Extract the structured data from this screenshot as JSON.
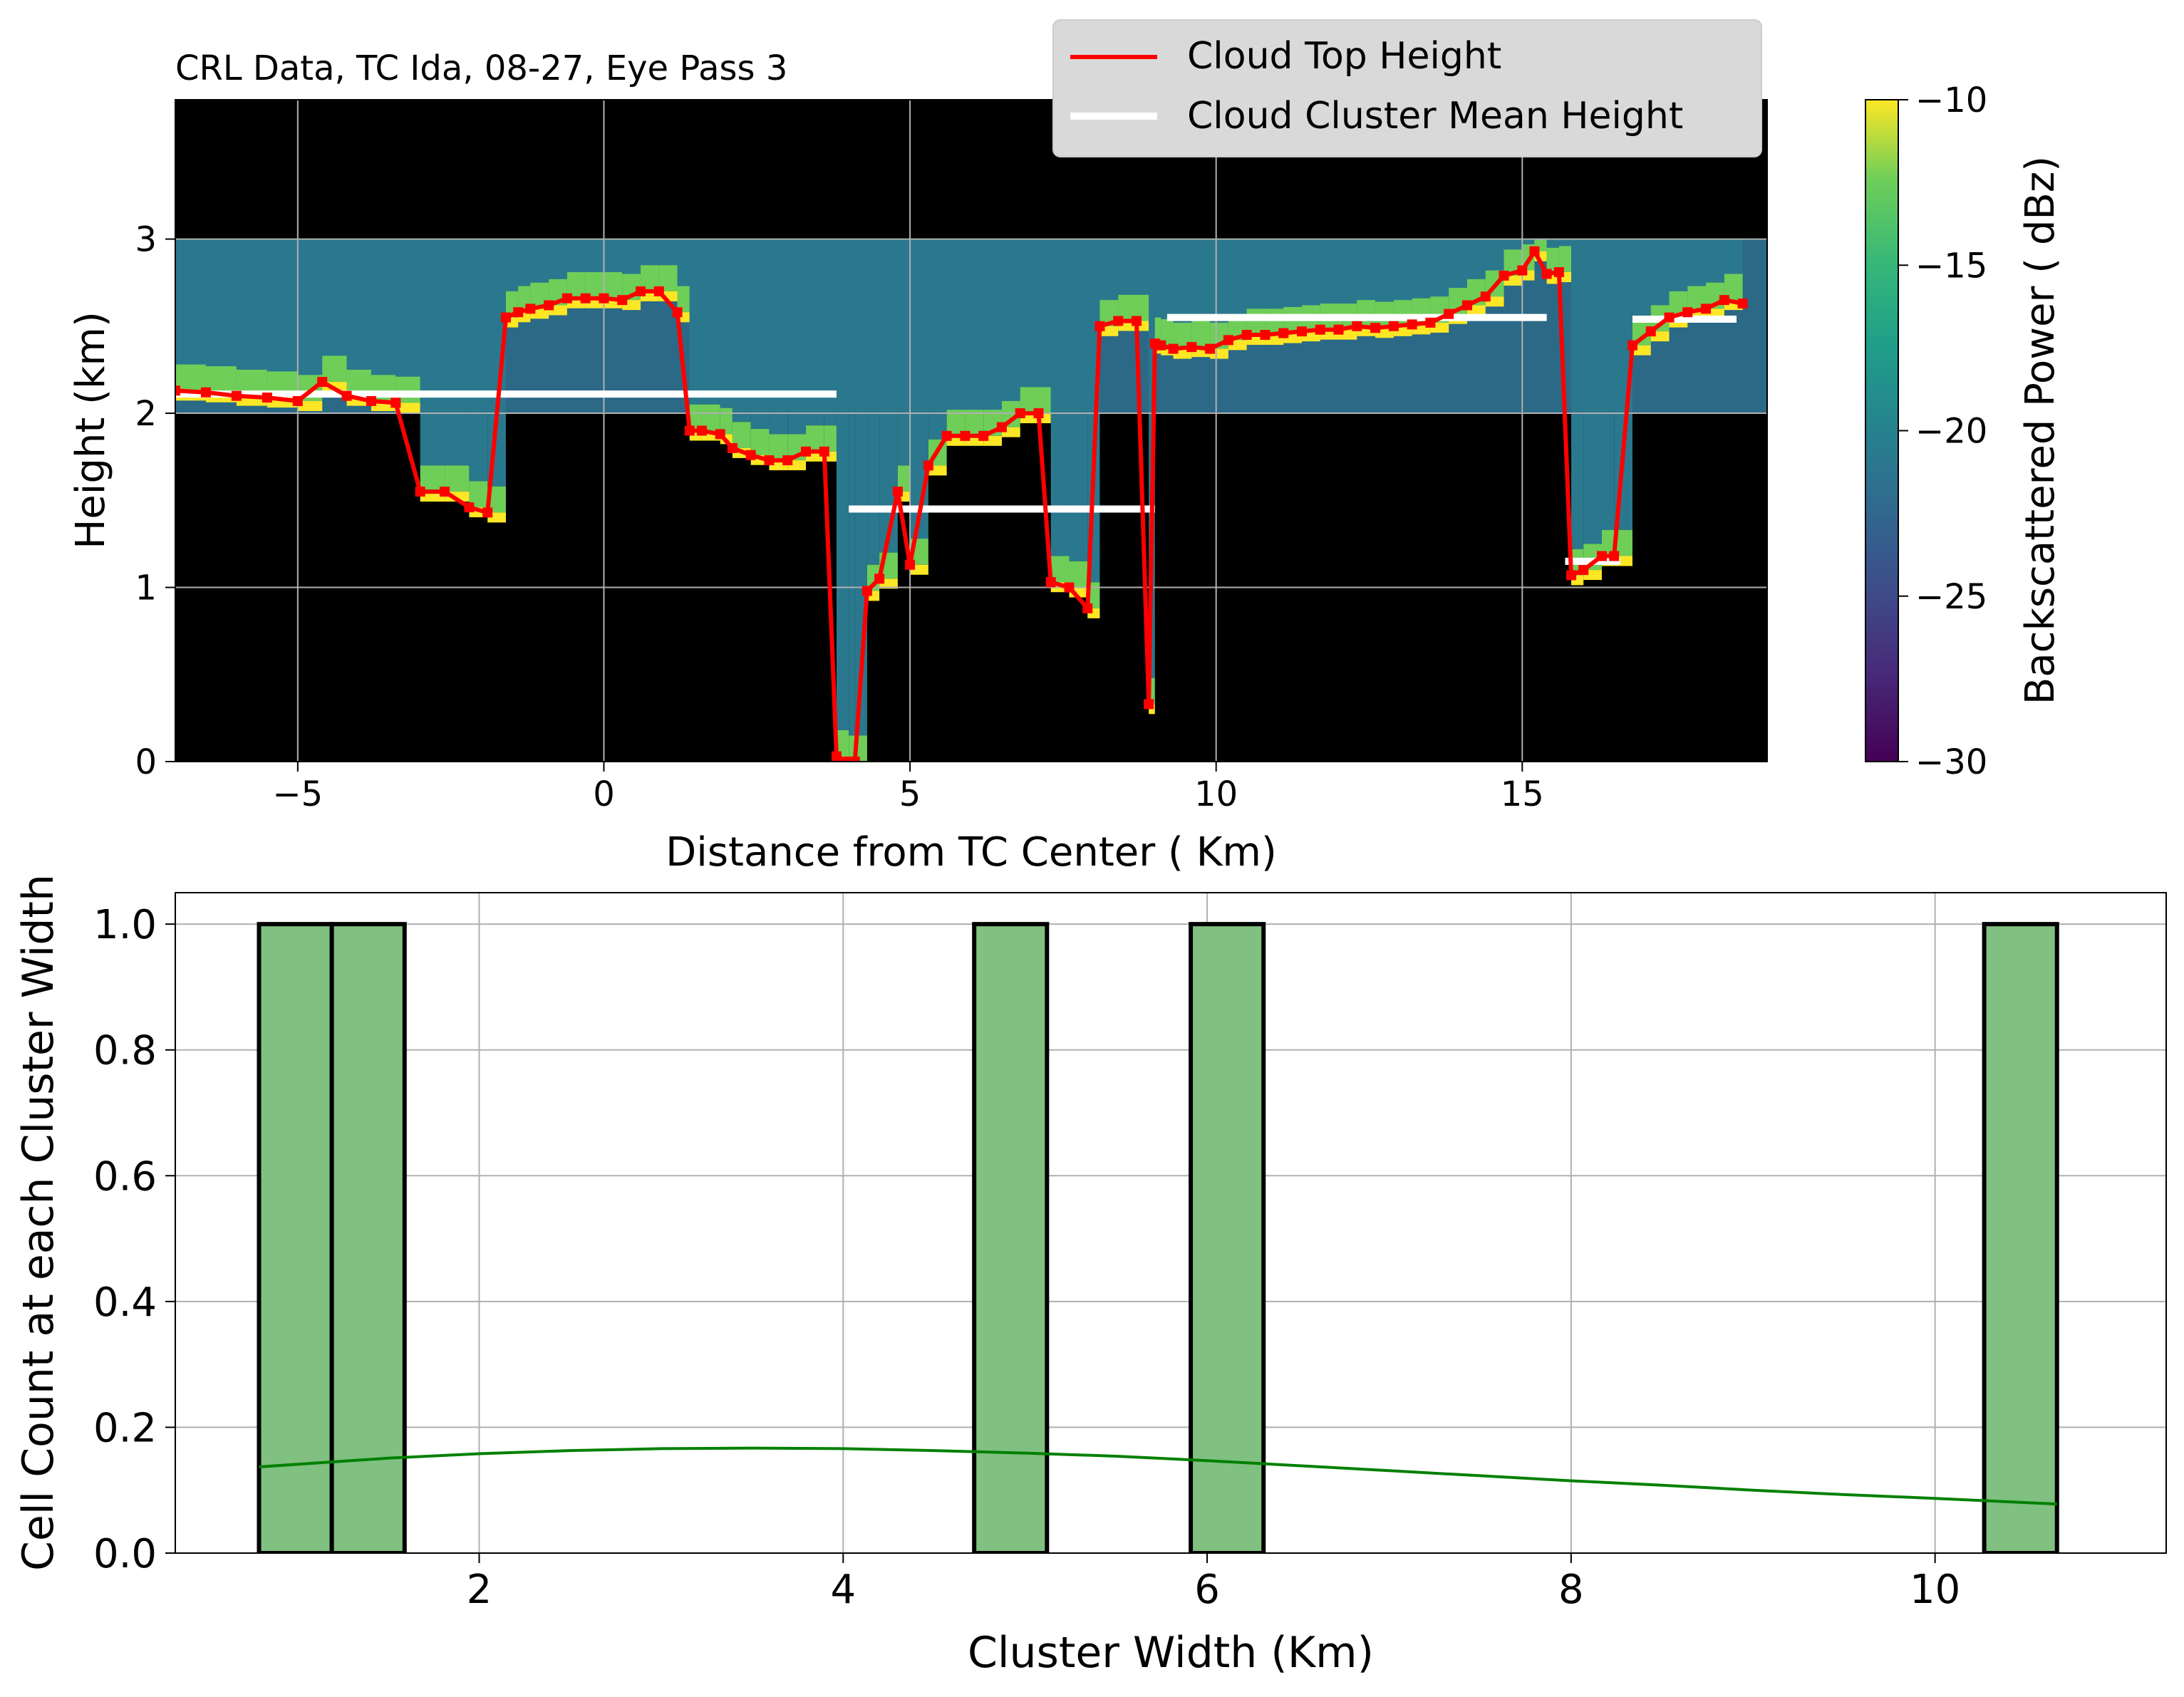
{
  "chart_data": [
    {
      "type": "heatmap",
      "title": "CRL Data, TC Ida, 08-27, Eye Pass 3",
      "xlabel": "Distance from TC Center ( Km)",
      "ylabel": "Height (km)",
      "xlim": [
        -7,
        19
      ],
      "ylim": [
        0,
        3.8
      ],
      "xticks": [
        -5,
        0,
        5,
        10,
        15
      ],
      "yticks": [
        0,
        1,
        2,
        3
      ],
      "grid": true,
      "legend_position": "top-center",
      "legend": [
        {
          "label": "Cloud Top Height",
          "color": "#ff0000"
        },
        {
          "label": "Cloud Cluster Mean Height",
          "color": "#ffffff"
        }
      ],
      "colorbar": {
        "label": "Backscattered Power ( dBz)",
        "min": -30,
        "max": -10,
        "ticks": [
          -10,
          -15,
          -20,
          -25,
          -30
        ],
        "colormap": "viridis"
      },
      "cloud_top_height": {
        "name": "Cloud Top Height",
        "x": [
          -7.0,
          -6.5,
          -6.0,
          -5.5,
          -5.0,
          -4.6,
          -4.2,
          -3.8,
          -3.4,
          -3.0,
          -2.6,
          -2.2,
          -1.9,
          -1.6,
          -1.4,
          -1.2,
          -0.9,
          -0.6,
          -0.3,
          0.0,
          0.3,
          0.6,
          0.9,
          1.2,
          1.4,
          1.6,
          1.9,
          2.1,
          2.4,
          2.7,
          3.0,
          3.3,
          3.6,
          3.8,
          4.0,
          4.1,
          4.3,
          4.5,
          4.8,
          5.0,
          5.3,
          5.6,
          5.9,
          6.2,
          6.5,
          6.8,
          7.1,
          7.3,
          7.6,
          7.9,
          8.1,
          8.4,
          8.7,
          8.9,
          9.0,
          9.1,
          9.3,
          9.6,
          9.9,
          10.2,
          10.5,
          10.8,
          11.1,
          11.4,
          11.7,
          12.0,
          12.3,
          12.6,
          12.9,
          13.2,
          13.5,
          13.8,
          14.1,
          14.4,
          14.7,
          15.0,
          15.2,
          15.4,
          15.6,
          15.8,
          16.0,
          16.3,
          16.5,
          16.8,
          17.1,
          17.4,
          17.7,
          18.0,
          18.3,
          18.6
        ],
        "y": [
          2.13,
          2.12,
          2.1,
          2.09,
          2.07,
          2.18,
          2.1,
          2.07,
          2.06,
          1.55,
          1.55,
          1.46,
          1.43,
          2.55,
          2.58,
          2.6,
          2.62,
          2.66,
          2.66,
          2.66,
          2.65,
          2.7,
          2.7,
          2.58,
          1.9,
          1.9,
          1.88,
          1.8,
          1.76,
          1.73,
          1.73,
          1.78,
          1.78,
          0.03,
          0.0,
          0.0,
          0.98,
          1.05,
          1.55,
          1.13,
          1.7,
          1.87,
          1.87,
          1.87,
          1.92,
          2.0,
          2.0,
          1.03,
          1.0,
          0.88,
          2.5,
          2.53,
          2.53,
          0.33,
          2.4,
          2.39,
          2.37,
          2.38,
          2.37,
          2.42,
          2.45,
          2.45,
          2.46,
          2.47,
          2.48,
          2.48,
          2.5,
          2.49,
          2.5,
          2.51,
          2.52,
          2.57,
          2.62,
          2.67,
          2.79,
          2.82,
          2.93,
          2.8,
          2.81,
          1.07,
          1.1,
          1.18,
          1.18,
          2.39,
          2.47,
          2.55,
          2.58,
          2.6,
          2.65,
          2.63
        ]
      },
      "cluster_mean_height": [
        {
          "x": [
            -7.0,
            3.8
          ],
          "y": 2.11
        },
        {
          "x": [
            4.0,
            9.0
          ],
          "y": 1.45
        },
        {
          "x": [
            9.2,
            15.4
          ],
          "y": 2.55
        },
        {
          "x": [
            15.7,
            16.6
          ],
          "y": 1.15
        },
        {
          "x": [
            16.8,
            18.5
          ],
          "y": 2.54
        }
      ]
    },
    {
      "type": "bar",
      "xlabel": "Cluster Width (Km)",
      "ylabel": "Cell Count at each Cluster Width",
      "xlim": [
        0.33,
        11.27
      ],
      "ylim": [
        0,
        1.05
      ],
      "xticks": [
        2,
        4,
        6,
        8,
        10
      ],
      "yticks": [
        0.0,
        0.2,
        0.4,
        0.6,
        0.8,
        1.0
      ],
      "grid": true,
      "bar_color": "#80c080",
      "kde_color": "#008000",
      "bins": [
        {
          "x0": 0.79,
          "x1": 1.19,
          "count": 1
        },
        {
          "x0": 1.19,
          "x1": 1.59,
          "count": 1
        },
        {
          "x0": 1.59,
          "x1": 4.72,
          "count": 0
        },
        {
          "x0": 4.72,
          "x1": 5.12,
          "count": 1
        },
        {
          "x0": 5.12,
          "x1": 5.91,
          "count": 0
        },
        {
          "x0": 5.91,
          "x1": 6.31,
          "count": 1
        },
        {
          "x0": 6.31,
          "x1": 10.27,
          "count": 0
        },
        {
          "x0": 10.27,
          "x1": 10.67,
          "count": 1
        }
      ],
      "kde": {
        "x": [
          0.79,
          1.5,
          2.0,
          2.5,
          3.0,
          3.5,
          4.0,
          4.5,
          5.0,
          5.5,
          6.0,
          6.5,
          7.0,
          7.5,
          8.0,
          8.5,
          9.0,
          9.5,
          10.0,
          10.67
        ],
        "y": [
          0.137,
          0.151,
          0.158,
          0.163,
          0.166,
          0.167,
          0.166,
          0.163,
          0.159,
          0.154,
          0.147,
          0.139,
          0.131,
          0.123,
          0.115,
          0.108,
          0.1,
          0.093,
          0.087,
          0.078
        ]
      }
    }
  ]
}
